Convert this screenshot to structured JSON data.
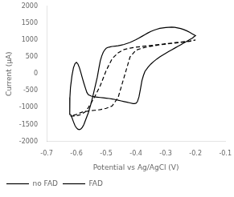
{
  "chart_data": {
    "type": "line",
    "xlabel": "Potential vs Ag/AgCl (V)",
    "ylabel": "Current (μA)",
    "xlim": [
      -0.7,
      -0.1
    ],
    "ylim": [
      -2000,
      2000
    ],
    "xticks": [
      -0.7,
      -0.6,
      -0.5,
      -0.4,
      -0.3,
      -0.2,
      -0.1
    ],
    "yticks": [
      -2000,
      -1500,
      -1000,
      -500,
      0,
      500,
      1000,
      1500,
      2000
    ],
    "grid": false,
    "legend": "bottom",
    "series": [
      {
        "name": "no FAD",
        "color": "black",
        "line_style": "dashed",
        "x": [
          -0.62,
          -0.61,
          -0.6,
          -0.59,
          -0.58,
          -0.57,
          -0.56,
          -0.54,
          -0.52,
          -0.5,
          -0.48,
          -0.46,
          -0.44,
          -0.42,
          -0.4,
          -0.38,
          -0.36,
          -0.34,
          -0.32,
          -0.3,
          -0.28,
          -0.26,
          -0.24,
          -0.22,
          -0.2,
          -0.205,
          -0.21,
          -0.22,
          -0.24,
          -0.26,
          -0.28,
          -0.3,
          -0.32,
          -0.34,
          -0.36,
          -0.38,
          -0.4,
          -0.42,
          -0.44,
          -0.46,
          -0.48,
          -0.5,
          -0.52,
          -0.54,
          -0.56,
          -0.58,
          -0.6,
          -0.62
        ],
        "values": [
          -1250,
          -1250,
          -1240,
          -1220,
          -1180,
          -1120,
          -1000,
          -700,
          -350,
          100,
          450,
          620,
          720,
          760,
          790,
          810,
          830,
          850,
          870,
          890,
          910,
          930,
          950,
          970,
          1000,
          990,
          980,
          960,
          940,
          920,
          900,
          880,
          860,
          830,
          800,
          760,
          700,
          500,
          -100,
          -700,
          -950,
          -1020,
          -1060,
          -1080,
          -1100,
          -1130,
          -1200,
          -1250
        ]
      },
      {
        "name": "FAD",
        "color": "black",
        "line_style": "solid",
        "x": [
          -0.62,
          -0.615,
          -0.61,
          -0.605,
          -0.6,
          -0.595,
          -0.59,
          -0.585,
          -0.58,
          -0.575,
          -0.57,
          -0.56,
          -0.55,
          -0.54,
          -0.53,
          -0.525,
          -0.52,
          -0.515,
          -0.51,
          -0.505,
          -0.5,
          -0.495,
          -0.49,
          -0.485,
          -0.48,
          -0.47,
          -0.46,
          -0.45,
          -0.44,
          -0.43,
          -0.42,
          -0.41,
          -0.4,
          -0.39,
          -0.38,
          -0.37,
          -0.36,
          -0.35,
          -0.34,
          -0.33,
          -0.32,
          -0.31,
          -0.3,
          -0.29,
          -0.28,
          -0.27,
          -0.26,
          -0.25,
          -0.24,
          -0.23,
          -0.22,
          -0.21,
          -0.205,
          -0.2,
          -0.205,
          -0.21,
          -0.22,
          -0.23,
          -0.24,
          -0.25,
          -0.26,
          -0.27,
          -0.28,
          -0.29,
          -0.3,
          -0.31,
          -0.32,
          -0.33,
          -0.34,
          -0.35,
          -0.36,
          -0.37,
          -0.375,
          -0.38,
          -0.385,
          -0.39,
          -0.395,
          -0.4,
          -0.405,
          -0.41,
          -0.42,
          -0.43,
          -0.44,
          -0.45,
          -0.46,
          -0.47,
          -0.48,
          -0.49,
          -0.5,
          -0.51,
          -0.52,
          -0.53,
          -0.54,
          -0.55,
          -0.56,
          -0.565,
          -0.57,
          -0.575,
          -0.58,
          -0.585,
          -0.59,
          -0.595,
          -0.6,
          -0.605,
          -0.61,
          -0.615,
          -0.62,
          -0.622,
          -0.623,
          -0.622,
          -0.62
        ],
        "values": [
          -1200,
          -1300,
          -1420,
          -1530,
          -1600,
          -1640,
          -1650,
          -1630,
          -1580,
          -1500,
          -1380,
          -1150,
          -850,
          -480,
          -100,
          150,
          380,
          530,
          640,
          710,
          760,
          780,
          790,
          800,
          810,
          820,
          830,
          850,
          870,
          900,
          930,
          970,
          1010,
          1060,
          1110,
          1160,
          1210,
          1255,
          1290,
          1320,
          1345,
          1360,
          1370,
          1375,
          1380,
          1375,
          1360,
          1340,
          1310,
          1275,
          1230,
          1180,
          1155,
          1130,
          1100,
          1060,
          1010,
          960,
          910,
          860,
          810,
          760,
          710,
          660,
          610,
          555,
          500,
          440,
          370,
          290,
          190,
          70,
          -50,
          -200,
          -450,
          -680,
          -820,
          -870,
          -880,
          -880,
          -860,
          -840,
          -820,
          -800,
          -780,
          -760,
          -745,
          -730,
          -720,
          -710,
          -700,
          -690,
          -680,
          -660,
          -620,
          -550,
          -420,
          -280,
          -130,
          30,
          180,
          290,
          340,
          300,
          180,
          -50,
          -400,
          -700,
          -1000,
          -1200,
          -1200
        ]
      }
    ]
  }
}
